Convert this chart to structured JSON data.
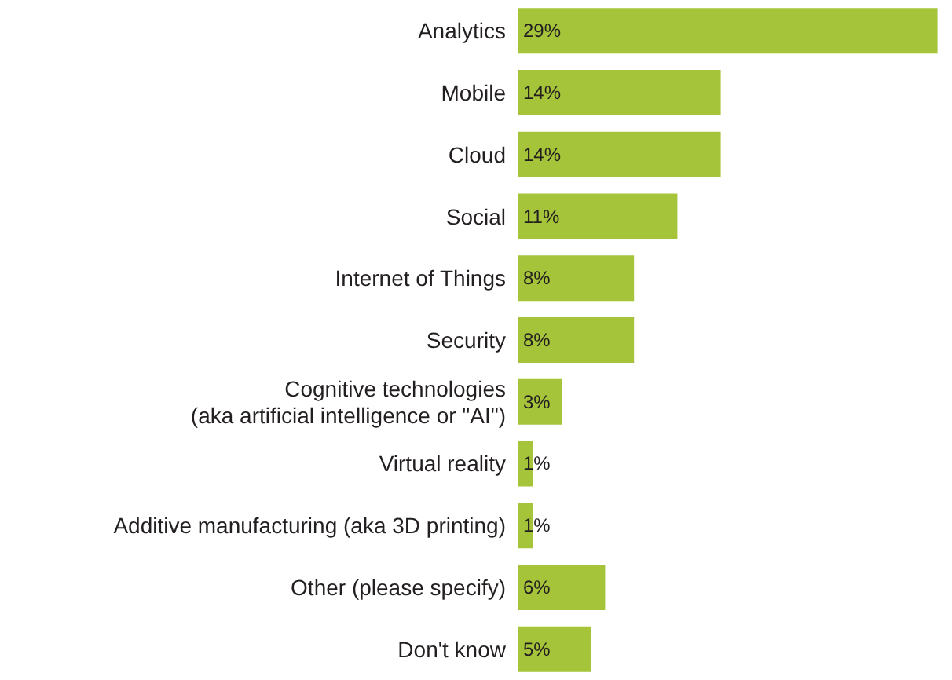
{
  "chart_data": {
    "type": "bar",
    "orientation": "horizontal",
    "categories": [
      "Analytics",
      "Mobile",
      "Cloud",
      "Social",
      "Internet of Things",
      "Security",
      "Cognitive technologies\n(aka artificial intelligence or \"AI\")",
      "Virtual reality",
      "Additive manufacturing (aka 3D printing)",
      "Other (please specify)",
      "Don't know"
    ],
    "values": [
      29,
      14,
      14,
      11,
      8,
      8,
      3,
      1,
      1,
      6,
      5
    ],
    "value_labels": [
      "29%",
      "14%",
      "14%",
      "11%",
      "8%",
      "8%",
      "3%",
      "1%",
      "1%",
      "6%",
      "5%"
    ],
    "color": "#a5c43a"
  }
}
